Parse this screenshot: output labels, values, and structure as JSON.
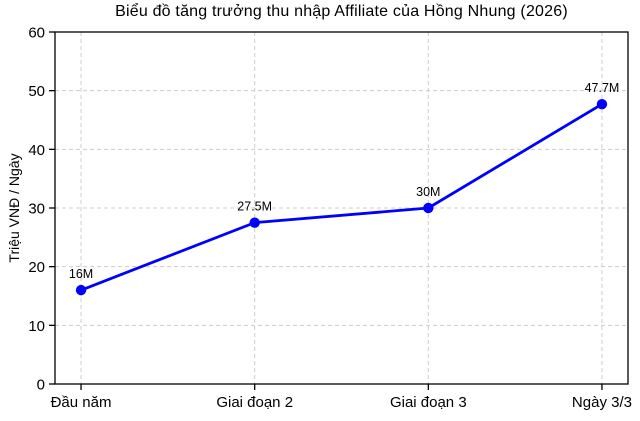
{
  "chart_data": {
    "type": "line",
    "title": "Biểu đồ tăng trưởng thu nhập Affiliate của Hồng Nhung (2026)",
    "ylabel": "Triệu VNĐ / Ngày",
    "xlabel": "",
    "categories": [
      "Đầu năm",
      "Giai đoạn 2",
      "Giai đoạn 3",
      "Ngày 3/3"
    ],
    "series": [
      {
        "values": [
          16,
          27.5,
          30,
          47.7
        ],
        "point_labels": [
          "16M",
          "27.5M",
          "30M",
          "47.7M"
        ]
      }
    ],
    "ylim": [
      0,
      60
    ],
    "yticks": [
      0,
      10,
      20,
      30,
      40,
      50,
      60
    ],
    "grid": true,
    "grid_style": "dashed",
    "legend": false,
    "colors": {
      "line": "#0000ff",
      "marker": "#0000ff",
      "grid": "#cccccc",
      "axis": "#000000",
      "text": "#000000",
      "background": "#ffffff"
    }
  }
}
